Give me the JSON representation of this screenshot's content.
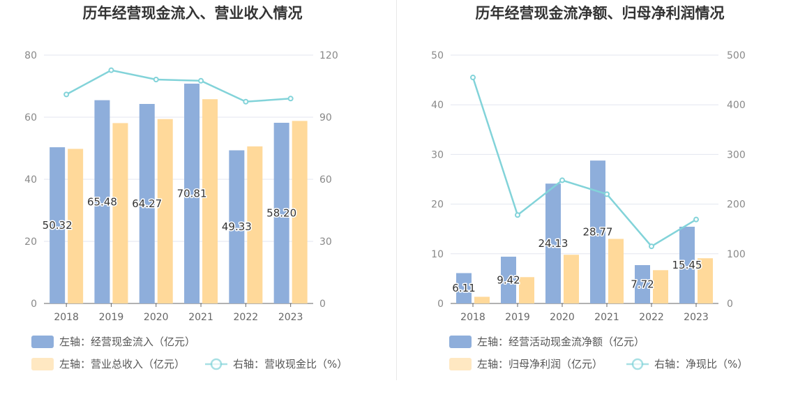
{
  "colors": {
    "bar_primary": "#8eaedb",
    "bar_secondary": "#ffd99a",
    "line": "#82d3d9",
    "grid": "#e3e6ef",
    "axis": "#666666"
  },
  "chart_data": [
    {
      "type": "bar",
      "title": "历年经营现金流入、营业收入情况",
      "categories": [
        "2018",
        "2019",
        "2020",
        "2021",
        "2022",
        "2023"
      ],
      "y_left_ticks": [
        "0",
        "20",
        "40",
        "60",
        "80"
      ],
      "y_right_ticks": [
        "0",
        "30",
        "60",
        "90",
        "120"
      ],
      "ylim_left": [
        0,
        80
      ],
      "ylim_right": [
        0,
        120
      ],
      "grid": true,
      "legend_position": "bottom-left",
      "series": [
        {
          "name": "左轴：经营现金流入（亿元）",
          "kind": "bar",
          "axis": "left",
          "values": [
            50.32,
            65.48,
            64.27,
            70.81,
            49.33,
            58.2
          ],
          "labels": [
            "50.32",
            "65.48",
            "64.27",
            "70.81",
            "49.33",
            "58.20"
          ]
        },
        {
          "name": "左轴：营业总收入（亿元）",
          "kind": "bar",
          "axis": "left",
          "values": [
            49.8,
            58.1,
            59.4,
            65.8,
            50.6,
            58.8
          ]
        },
        {
          "name": "右轴：营收现金比（%）",
          "kind": "line",
          "axis": "right",
          "values": [
            101.0,
            112.7,
            108.2,
            107.6,
            97.5,
            99.0
          ]
        }
      ]
    },
    {
      "type": "bar",
      "title": "历年经营现金流净额、归母净利润情况",
      "categories": [
        "2018",
        "2019",
        "2020",
        "2021",
        "2022",
        "2023"
      ],
      "y_left_ticks": [
        "0",
        "10",
        "20",
        "30",
        "40",
        "50"
      ],
      "y_right_ticks": [
        "0",
        "100",
        "200",
        "300",
        "400",
        "500"
      ],
      "ylim_left": [
        0,
        50
      ],
      "ylim_right": [
        0,
        500
      ],
      "grid": true,
      "legend_position": "bottom-left",
      "series": [
        {
          "name": "左轴：经营活动现金流净额（亿元）",
          "kind": "bar",
          "axis": "left",
          "values": [
            6.11,
            9.42,
            24.13,
            28.77,
            7.72,
            15.45
          ],
          "labels": [
            "6.11",
            "9.42",
            "24.13",
            "28.77",
            "7.72",
            "15.45"
          ]
        },
        {
          "name": "左轴：归母净利润（亿元）",
          "kind": "bar",
          "axis": "left",
          "values": [
            1.34,
            5.3,
            9.8,
            13.0,
            6.7,
            9.1
          ]
        },
        {
          "name": "右轴：净现比（%）",
          "kind": "line",
          "axis": "right",
          "values": [
            455,
            178,
            248,
            220,
            115,
            169
          ]
        }
      ]
    }
  ]
}
